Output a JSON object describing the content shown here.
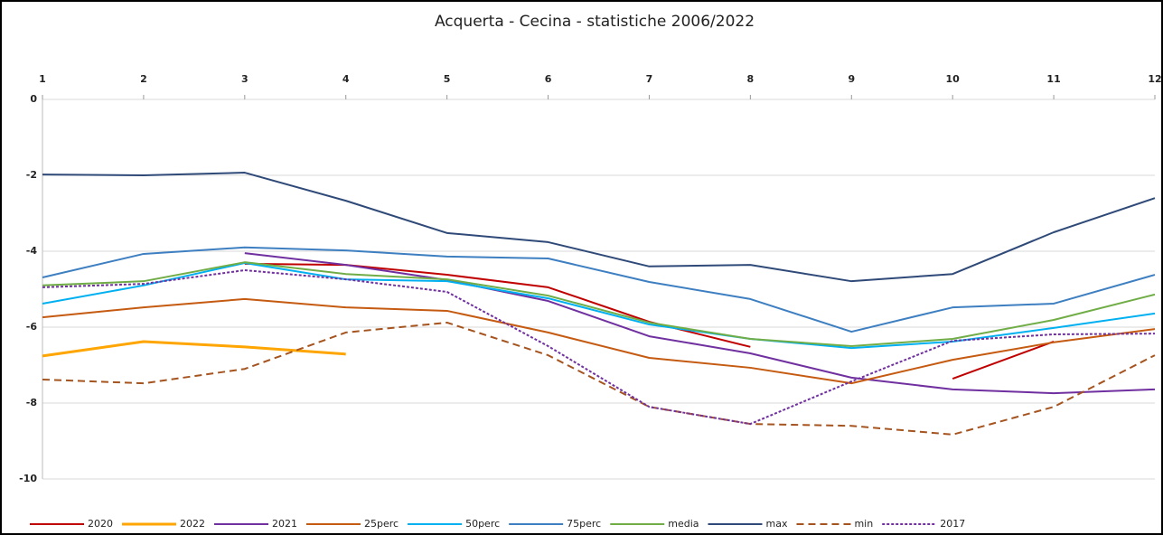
{
  "chart_data": {
    "type": "line",
    "title": "Acquerta - Cecina - statistiche 2006/2022",
    "x": [
      1,
      2,
      3,
      4,
      5,
      6,
      7,
      8,
      9,
      10,
      11,
      12
    ],
    "xlim": [
      1,
      12
    ],
    "xticks": [
      1,
      2,
      3,
      4,
      5,
      6,
      7,
      8,
      9,
      10,
      11,
      12
    ],
    "ylim": [
      -10,
      0
    ],
    "yticks": [
      0,
      -2,
      -4,
      -6,
      -8,
      -10
    ],
    "grid": true,
    "legend": "bottom",
    "series": [
      {
        "name": "2020",
        "color": "#c00000",
        "width": 2,
        "dash": "solid",
        "values": [
          null,
          null,
          -4.33,
          -4.36,
          -4.62,
          -4.95,
          -5.86,
          -6.52,
          null,
          -7.36,
          -6.38,
          null
        ]
      },
      {
        "name": "2022",
        "color": "#ffa500",
        "width": 3,
        "dash": "solid",
        "values": [
          -6.76,
          -6.38,
          -6.52,
          -6.71,
          null,
          null,
          null,
          null,
          null,
          null,
          null,
          null
        ]
      },
      {
        "name": "2021",
        "color": "#7030a0",
        "width": 2,
        "dash": "solid",
        "values": [
          null,
          null,
          -4.05,
          -4.36,
          -4.76,
          -5.31,
          -6.24,
          -6.69,
          -7.33,
          -7.64,
          -7.74,
          -7.64
        ]
      },
      {
        "name": "25perc",
        "color": "#c55a11",
        "width": 2,
        "dash": "solid",
        "values": [
          -5.74,
          -5.48,
          -5.26,
          -5.48,
          -5.57,
          -6.14,
          -6.81,
          -7.07,
          -7.48,
          -6.86,
          -6.4,
          -6.05
        ]
      },
      {
        "name": "50perc",
        "color": "#00b0f0",
        "width": 2,
        "dash": "solid",
        "values": [
          -5.38,
          -4.9,
          -4.31,
          -4.74,
          -4.79,
          -5.24,
          -5.93,
          -6.31,
          -6.55,
          -6.38,
          -6.02,
          -5.64
        ]
      },
      {
        "name": "75perc",
        "color": "#3d7fc1",
        "width": 2,
        "dash": "solid",
        "values": [
          -4.69,
          -4.07,
          -3.9,
          -3.98,
          -4.14,
          -4.19,
          -4.81,
          -5.26,
          -6.12,
          -5.48,
          -5.38,
          -4.62
        ]
      },
      {
        "name": "media",
        "color": "#70ad47",
        "width": 2,
        "dash": "solid",
        "values": [
          -4.9,
          -4.79,
          -4.29,
          -4.6,
          -4.74,
          -5.17,
          -5.88,
          -6.31,
          -6.5,
          -6.31,
          -5.81,
          -5.14
        ]
      },
      {
        "name": "max",
        "color": "#2f4a78",
        "width": 2,
        "dash": "solid",
        "values": [
          -1.98,
          -2.0,
          -1.93,
          -2.67,
          -3.52,
          -3.76,
          -4.4,
          -4.36,
          -4.79,
          -4.6,
          -3.5,
          -2.6
        ]
      },
      {
        "name": "min",
        "color": "#a5541f",
        "width": 2,
        "dash": "dashed",
        "values": [
          -7.38,
          -7.48,
          -7.1,
          -6.14,
          -5.88,
          -6.74,
          -8.1,
          -8.55,
          -8.6,
          -8.83,
          -8.1,
          -6.74
        ]
      },
      {
        "name": "2017",
        "color": "#7030a0",
        "width": 2,
        "dash": "dotted",
        "values": [
          -4.95,
          -4.86,
          -4.5,
          -4.74,
          -5.07,
          -6.5,
          -8.1,
          -8.55,
          -7.43,
          -6.36,
          -6.19,
          -6.17
        ]
      }
    ]
  }
}
